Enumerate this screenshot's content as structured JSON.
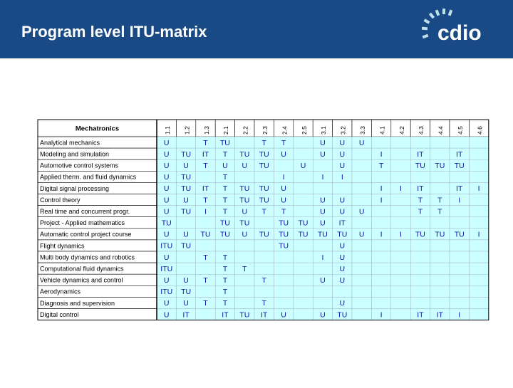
{
  "header": {
    "title": "Program level ITU-matrix",
    "logo": "cdio"
  },
  "table": {
    "corner": "Mechatronics",
    "columns": [
      "1.1",
      "1.2",
      "1.3",
      "2.1",
      "2.2",
      "2.3",
      "2.4",
      "2.5",
      "3.1",
      "3.2",
      "3.3",
      "4.1",
      "4.2",
      "4.3",
      "4.4",
      "4.5",
      "4.6"
    ],
    "rows": [
      {
        "name": "Analytical mechanics",
        "cells": [
          "U",
          null,
          "T",
          "TU",
          null,
          "T",
          "T",
          null,
          "U",
          "U",
          "U",
          null,
          null,
          null,
          null,
          null,
          null
        ]
      },
      {
        "name": "Modeling and simulation",
        "cells": [
          "U",
          "TU",
          "IT",
          "T",
          "TU",
          "TU",
          "U",
          null,
          "U",
          "U",
          null,
          "I",
          null,
          "IT",
          null,
          "IT",
          null
        ]
      },
      {
        "name": "Automotive control systems",
        "cells": [
          "U",
          "U",
          "T",
          "U",
          "U",
          "TU",
          null,
          "U",
          null,
          "U",
          null,
          "T",
          null,
          "TU",
          "TU",
          "TU",
          null
        ]
      },
      {
        "name": "Applied therm. and fluid dynamics",
        "cells": [
          "U",
          "TU",
          null,
          "T",
          null,
          null,
          "I",
          null,
          "I",
          "I",
          null,
          null,
          null,
          null,
          null,
          null,
          null
        ]
      },
      {
        "name": "Digital signal processing",
        "cells": [
          "U",
          "TU",
          "IT",
          "T",
          "TU",
          "TU",
          "U",
          null,
          null,
          null,
          null,
          "I",
          "I",
          "IT",
          null,
          "IT",
          "I"
        ]
      },
      {
        "name": "Control theory",
        "cells": [
          "U",
          "U",
          "T",
          "T",
          "TU",
          "TU",
          "U",
          null,
          "U",
          "U",
          null,
          "I",
          null,
          "T",
          "T",
          "I",
          null
        ]
      },
      {
        "name": "Real time and concurrent progr.",
        "cells": [
          "U",
          "TU",
          "I",
          "T",
          "U",
          "T",
          "T",
          null,
          "U",
          "U",
          "U",
          null,
          null,
          "T",
          "T",
          null,
          null
        ]
      },
      {
        "name": "Project - Applied mathematics",
        "cells": [
          "TU",
          null,
          null,
          "TU",
          "TU",
          null,
          "TU",
          "TU",
          "U",
          "IT",
          null,
          null,
          null,
          null,
          null,
          null,
          null
        ]
      },
      {
        "name": "Automatic control project course",
        "cells": [
          "U",
          "U",
          "TU",
          "TU",
          "U",
          "TU",
          "TU",
          "TU",
          "TU",
          "TU",
          "U",
          "I",
          "I",
          "TU",
          "TU",
          "TU",
          "I"
        ]
      },
      {
        "name": "Flight dynamics",
        "cells": [
          "ITU",
          "TU",
          null,
          null,
          null,
          null,
          "TU",
          null,
          null,
          "U",
          null,
          null,
          null,
          null,
          null,
          null,
          null
        ]
      },
      {
        "name": "Multi body dynamics and robotics",
        "cells": [
          "U",
          null,
          "T",
          "T",
          null,
          null,
          null,
          null,
          "I",
          "U",
          null,
          null,
          null,
          null,
          null,
          null,
          null
        ]
      },
      {
        "name": "Computational fluid dynamics",
        "cells": [
          "ITU",
          null,
          null,
          "T",
          "T",
          null,
          null,
          null,
          null,
          "U",
          null,
          null,
          null,
          null,
          null,
          null,
          null
        ]
      },
      {
        "name": "Vehicle dynamics and control",
        "cells": [
          "U",
          "U",
          "T",
          "T",
          null,
          "T",
          null,
          null,
          "U",
          "U",
          null,
          null,
          null,
          null,
          null,
          null,
          null
        ]
      },
      {
        "name": "Aerodynamics",
        "cells": [
          "ITU",
          "TU",
          null,
          "T",
          null,
          null,
          null,
          null,
          null,
          null,
          null,
          null,
          null,
          null,
          null,
          null,
          null
        ]
      },
      {
        "name": "Diagnosis and supervision",
        "cells": [
          "U",
          "U",
          "T",
          "T",
          null,
          "T",
          null,
          null,
          null,
          "U",
          null,
          null,
          null,
          null,
          null,
          null,
          null
        ]
      },
      {
        "name": "Digital control",
        "cells": [
          "U",
          "IT",
          null,
          "IT",
          "TU",
          "IT",
          "U",
          null,
          "U",
          "TU",
          null,
          "I",
          null,
          "IT",
          "IT",
          "I",
          null
        ]
      }
    ]
  }
}
